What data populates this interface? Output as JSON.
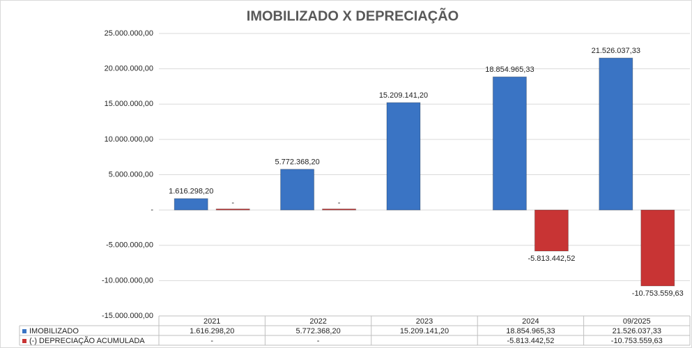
{
  "chart_data": {
    "type": "bar",
    "title": "IMOBILIZADO X DEPRECIAÇÃO",
    "categories": [
      "2021",
      "2022",
      "2023",
      "2024",
      "09/2025"
    ],
    "series": [
      {
        "name": "IMOBILIZADO",
        "color": "#3a74c4",
        "values": [
          1616298.2,
          5772368.2,
          15209141.2,
          18854965.33,
          21526037.33
        ],
        "value_labels": [
          "1.616.298,20",
          "5.772.368,20",
          "15.209.141,20",
          "18.854.965,33",
          "21.526.037,33"
        ]
      },
      {
        "name": "(-) DEPRECIAÇÃO ACUMULADA",
        "color": "#c83434",
        "values": [
          0,
          0,
          null,
          -5813442.52,
          -10753559.63
        ],
        "value_labels": [
          "-",
          "-",
          null,
          "-5.813.442,52",
          "-10.753.559,63"
        ]
      }
    ],
    "ylim": [
      -15000000,
      25000000
    ],
    "yticks": [
      {
        "value": -15000000,
        "label": "-15.000.000,00"
      },
      {
        "value": -10000000,
        "label": "-10.000.000,00"
      },
      {
        "value": -5000000,
        "label": "-5.000.000,00"
      },
      {
        "value": 0,
        "label": "-"
      },
      {
        "value": 5000000,
        "label": "5.000.000,00"
      },
      {
        "value": 10000000,
        "label": "10.000.000,00"
      },
      {
        "value": 15000000,
        "label": "15.000.000,00"
      },
      {
        "value": 20000000,
        "label": "20.000.000,00"
      },
      {
        "value": 25000000,
        "label": "25.000.000,00"
      }
    ],
    "grid": true
  }
}
